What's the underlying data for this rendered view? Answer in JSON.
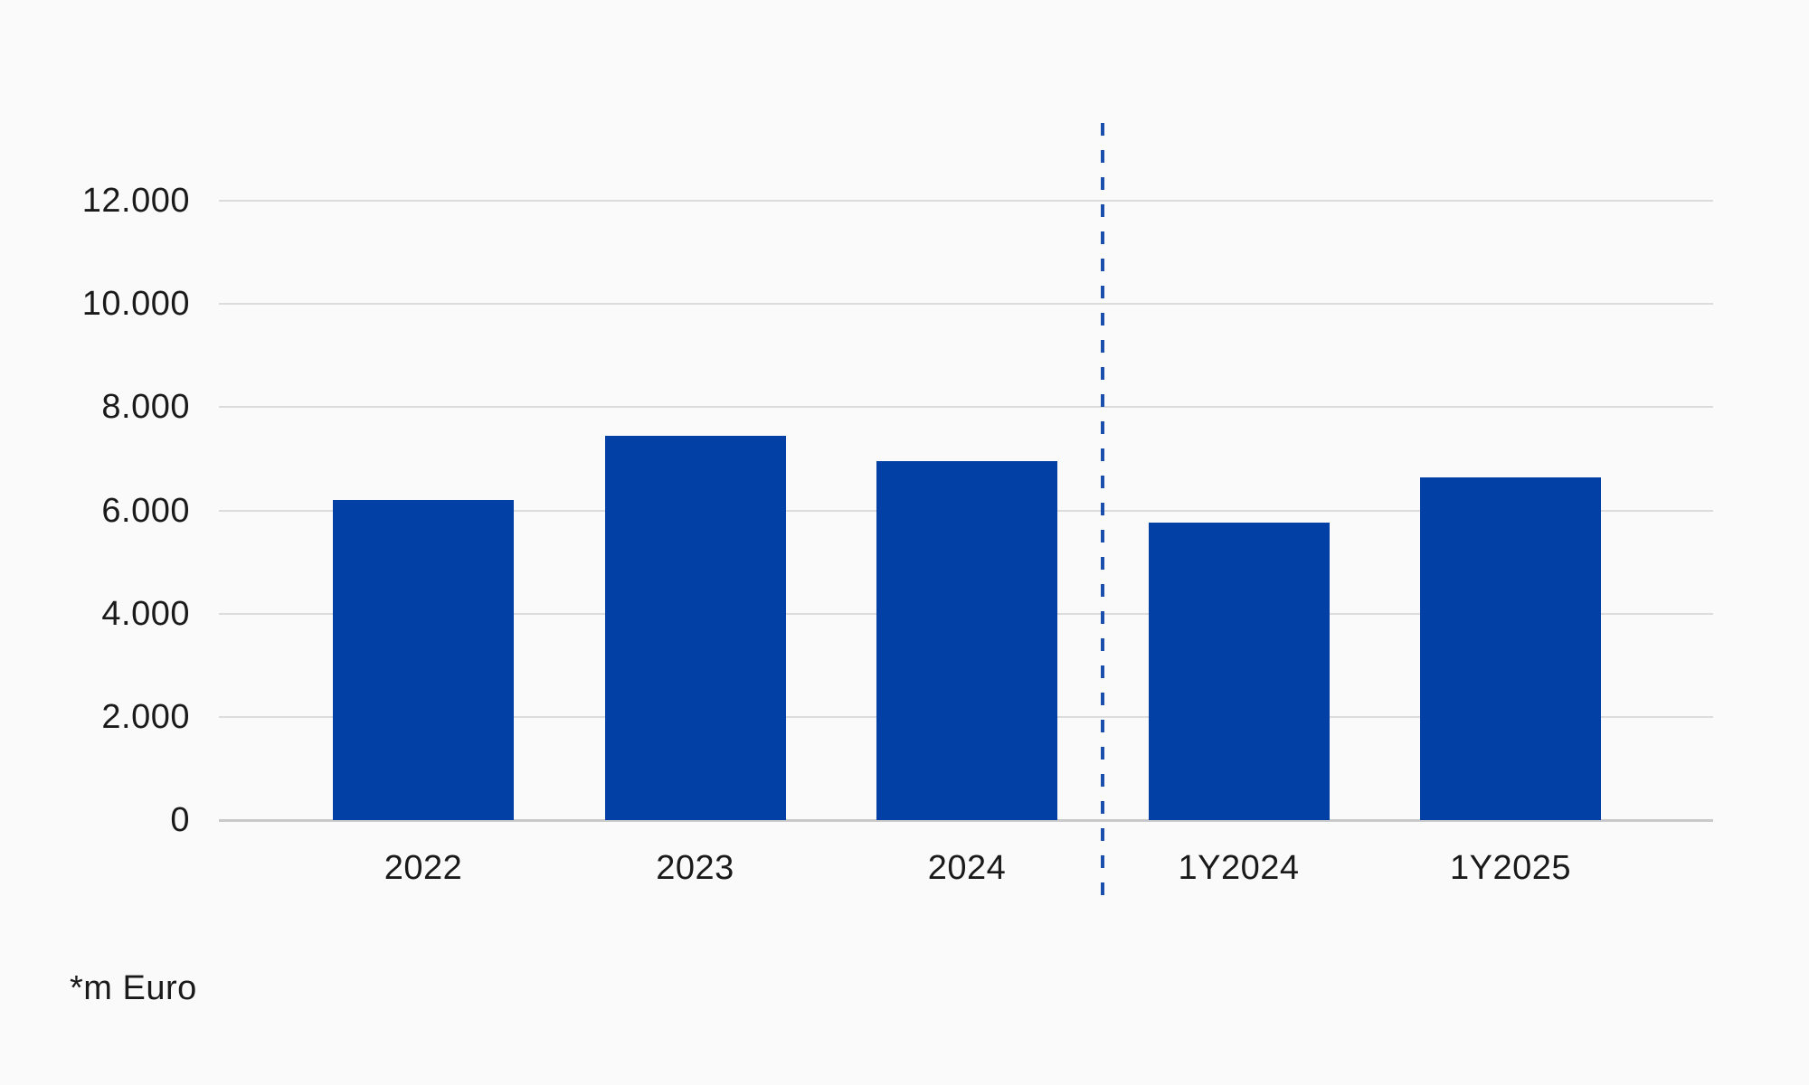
{
  "chart_data": {
    "type": "bar",
    "categories": [
      "2022",
      "2023",
      "2024",
      "1Y2024",
      "1Y2025"
    ],
    "values": [
      6200,
      7450,
      6950,
      5760,
      6640
    ],
    "title": "",
    "xlabel": "",
    "ylabel": "",
    "footnote": "*m Euro",
    "ylim": [
      0,
      12000
    ],
    "ytick_step": 2000,
    "yticks": [
      {
        "value": 0,
        "label": "0"
      },
      {
        "value": 2000,
        "label": "2.000"
      },
      {
        "value": 4000,
        "label": "4.000"
      },
      {
        "value": 6000,
        "label": "6.000"
      },
      {
        "value": 8000,
        "label": "8.000"
      },
      {
        "value": 10000,
        "label": "10.000"
      },
      {
        "value": 12000,
        "label": "12.000"
      }
    ],
    "grid": true,
    "legend": false,
    "separator": {
      "type": "dashed-vertical-line",
      "between_categories": [
        "2024",
        "1Y2024"
      ],
      "color": "#1b4fae"
    },
    "colors": {
      "bar": "#0340a5",
      "background": "#fafafa",
      "gridline": "#dcdcdc",
      "zero_axis_line": "#c9c9c9",
      "text": "#1a1a1a"
    }
  }
}
